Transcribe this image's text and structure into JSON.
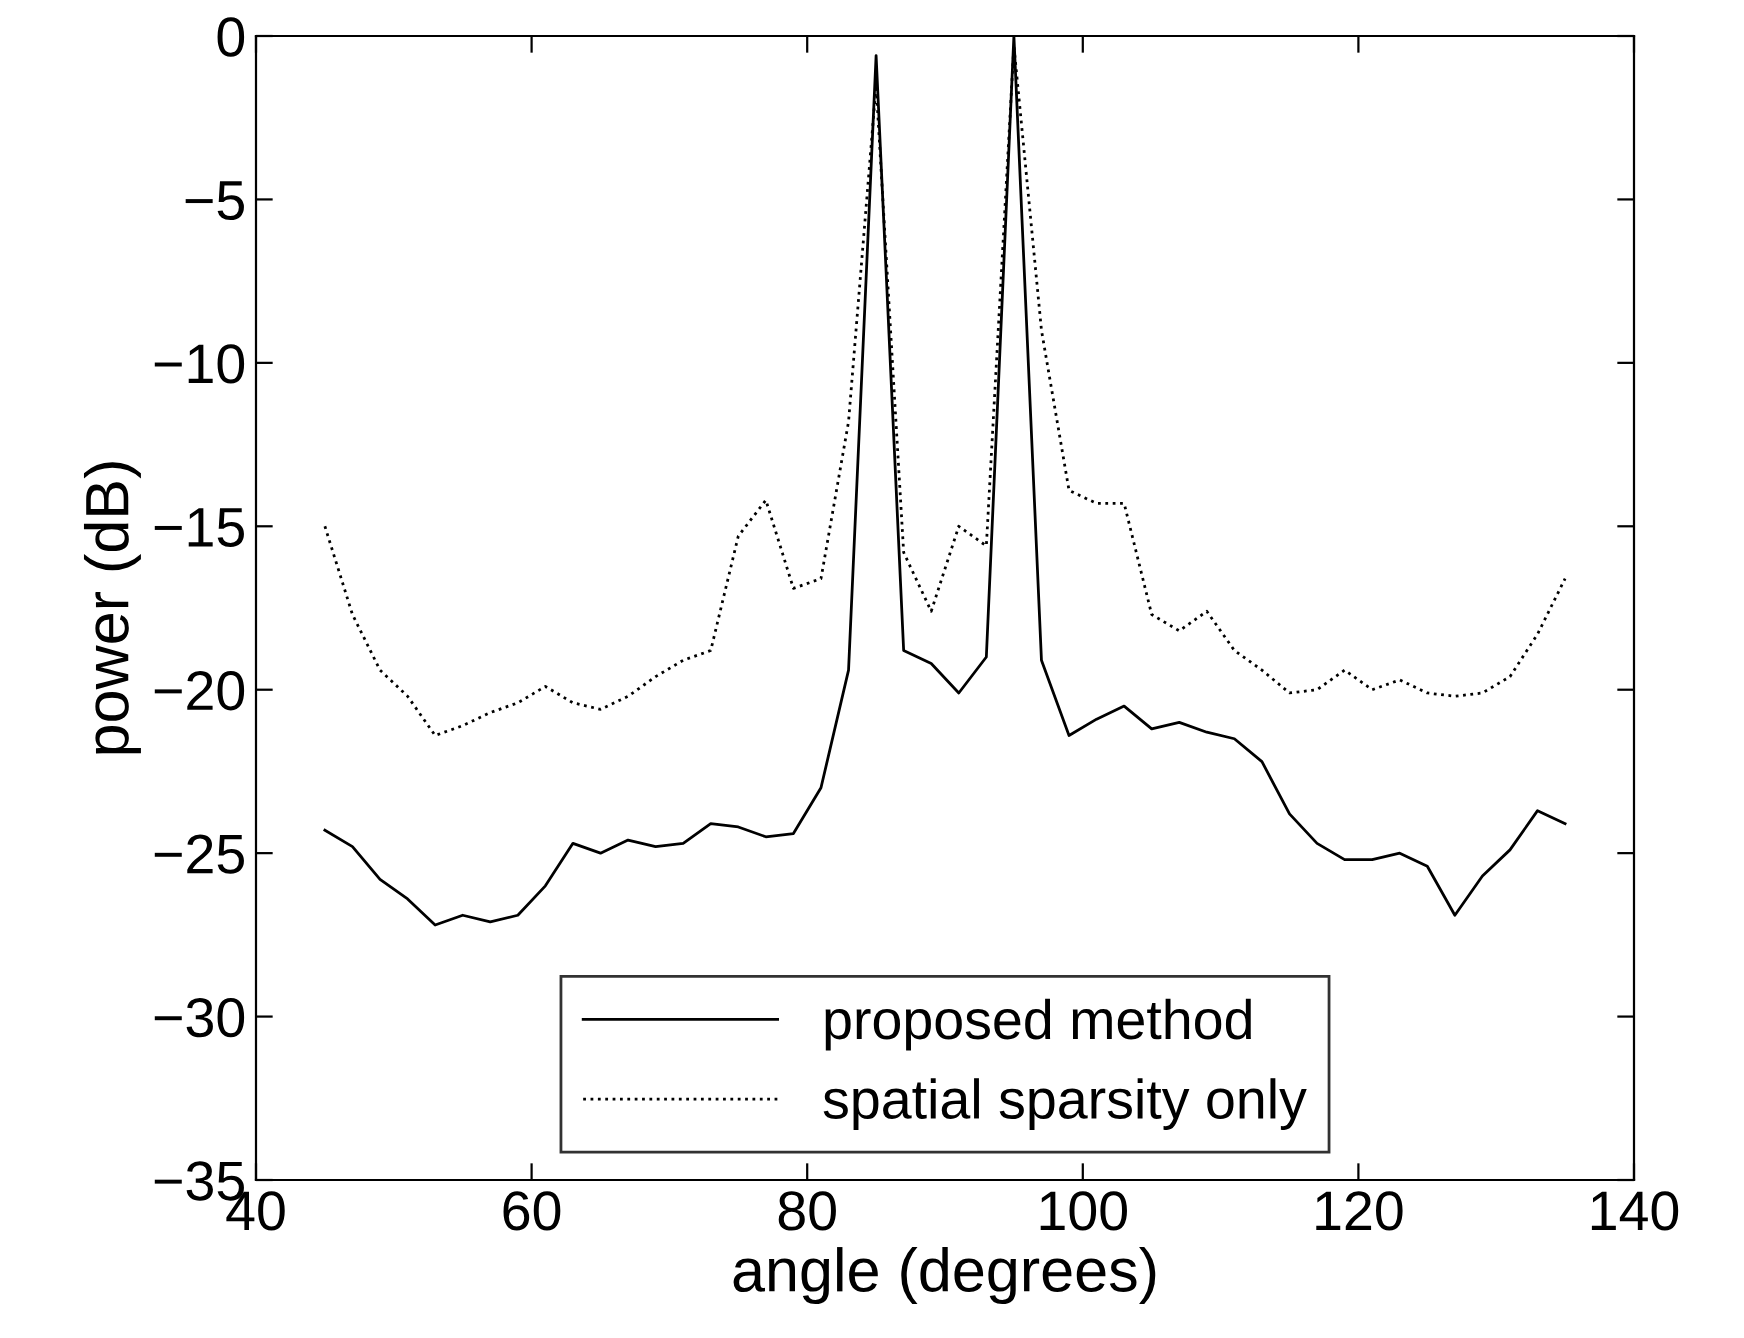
{
  "chart_data": {
    "type": "line",
    "xlabel": "angle (degrees)",
    "ylabel": "power (dB)",
    "x": [
      45,
      47,
      49,
      51,
      53,
      55,
      57,
      59,
      61,
      63,
      65,
      67,
      69,
      71,
      73,
      75,
      77,
      79,
      81,
      83,
      85,
      87,
      89,
      91,
      93,
      95,
      97,
      99,
      101,
      103,
      105,
      107,
      109,
      111,
      113,
      115,
      117,
      119,
      121,
      123,
      125,
      127,
      129,
      131,
      133,
      135
    ],
    "series": [
      {
        "name": "proposed method",
        "color": "#000000",
        "line_style": "solid",
        "values": [
          -24.3,
          -24.8,
          -25.8,
          -26.4,
          -27.2,
          -26.9,
          -27.1,
          -26.9,
          -26.0,
          -24.7,
          -25.0,
          -24.6,
          -24.8,
          -24.7,
          -24.1,
          -24.2,
          -24.5,
          -24.4,
          -23.0,
          -19.4,
          -0.6,
          -18.8,
          -19.2,
          -20.1,
          -19.0,
          0,
          -19.1,
          -21.4,
          -20.9,
          -20.5,
          -21.2,
          -21.0,
          -21.3,
          -21.5,
          -22.2,
          -23.8,
          -24.7,
          -25.2,
          -25.2,
          -25.0,
          -25.4,
          -26.9,
          -25.7,
          -24.9,
          -23.7,
          -24.1
        ]
      },
      {
        "name": "spatial sparsity only",
        "color": "#000000",
        "line_style": "dotted",
        "values": [
          -15,
          -17.7,
          -19.4,
          -20.2,
          -21.4,
          -21.1,
          -20.7,
          -20.4,
          -19.9,
          -20.4,
          -20.6,
          -20.2,
          -19.6,
          -19.1,
          -18.8,
          -15.3,
          -14.2,
          -16.9,
          -16.6,
          -11.8,
          -1.5,
          -15.8,
          -17.6,
          -15.0,
          -15.6,
          -0.3,
          -9,
          -13.9,
          -14.3,
          -14.3,
          -17.7,
          -18.2,
          -17.6,
          -18.8,
          -19.4,
          -20.1,
          -20.0,
          -19.4,
          -20.0,
          -19.7,
          -20.1,
          -20.2,
          -20.1,
          -19.6,
          -18.3,
          -16.6
        ]
      }
    ],
    "xlim": [
      40,
      140
    ],
    "xticks": [
      40,
      60,
      80,
      100,
      120,
      140
    ],
    "ylim": [
      -35,
      0
    ],
    "yticks": [
      {
        "value": -35,
        "label": "−35"
      },
      {
        "value": -30,
        "label": "−30"
      },
      {
        "value": -25,
        "label": "−25"
      },
      {
        "value": -20,
        "label": "−20"
      },
      {
        "value": -15,
        "label": "−15"
      },
      {
        "value": -10,
        "label": "−10"
      },
      {
        "value": -5,
        "label": "−5"
      },
      0
    ],
    "grid": false,
    "legend": "bottom",
    "marker": "none"
  }
}
